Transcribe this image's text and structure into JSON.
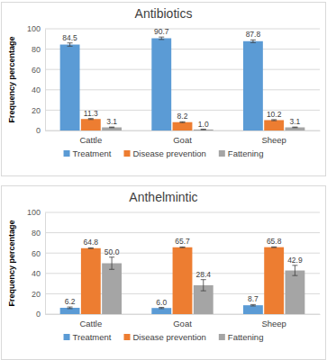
{
  "chart_data": [
    {
      "type": "bar",
      "title": "Antibiotics",
      "y_label": "Frequency percentage",
      "categories": [
        "Cattle",
        "Goat",
        "Sheep"
      ],
      "series": [
        {
          "name": "Treatment",
          "color": "#5b9bd5",
          "values": [
            84.5,
            90.7,
            87.8
          ],
          "value_labels": [
            "84.5",
            "90.7",
            "87.8"
          ],
          "errors": [
            1.6,
            1.2,
            1.3
          ]
        },
        {
          "name": "Disease prevention",
          "color": "#ed7d31",
          "values": [
            11.3,
            8.2,
            10.2
          ],
          "value_labels": [
            "11.3",
            "8.2",
            "10.2"
          ],
          "errors": [
            0.5,
            0.4,
            0.5
          ]
        },
        {
          "name": "Fattening",
          "color": "#a5a5a5",
          "values": [
            3.1,
            1.0,
            3.1
          ],
          "value_labels": [
            "3.1",
            "1.0",
            "3.1"
          ],
          "errors": [
            0.3,
            0.2,
            0.3
          ]
        }
      ],
      "ylim": [
        0,
        100
      ],
      "yticks": [
        0,
        20,
        40,
        60,
        80,
        100
      ],
      "grid": true,
      "legend": "bottom",
      "data_labels": true
    },
    {
      "type": "bar",
      "title": "Anthelmintic",
      "y_label": "Frequency percentage",
      "categories": [
        "Cattle",
        "Goat",
        "Sheep"
      ],
      "series": [
        {
          "name": "Treatment",
          "color": "#5b9bd5",
          "values": [
            6.2,
            6.0,
            8.7
          ],
          "value_labels": [
            "6.2",
            "6.0",
            "8.7"
          ],
          "errors": [
            0.8,
            0.6,
            0.7
          ]
        },
        {
          "name": "Disease prevention",
          "color": "#ed7d31",
          "values": [
            64.8,
            65.7,
            65.8
          ],
          "value_labels": [
            "64.8",
            "65.7",
            "65.8"
          ],
          "errors": [
            0.3,
            0.3,
            0.3
          ]
        },
        {
          "name": "Fattening",
          "color": "#a5a5a5",
          "values": [
            50.0,
            28.4,
            42.9
          ],
          "value_labels": [
            "50.0",
            "28.4",
            "42.9"
          ],
          "errors": [
            6.0,
            5.5,
            5.0
          ]
        }
      ],
      "ylim": [
        0,
        100
      ],
      "yticks": [
        0,
        20,
        40,
        60,
        80,
        100
      ],
      "grid": true,
      "legend": "bottom",
      "data_labels": true
    }
  ]
}
